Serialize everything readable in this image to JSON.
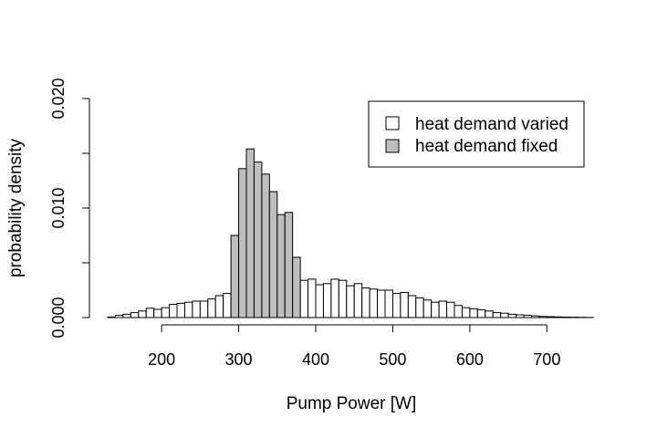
{
  "chart_data": {
    "type": "bar",
    "title": "",
    "xlabel": "Pump Power [W]",
    "ylabel": "probability density",
    "xlim": [
      130,
      760
    ],
    "ylim": [
      0,
      0.02
    ],
    "x_ticks": [
      200,
      300,
      400,
      500,
      600,
      700
    ],
    "x_tick_labels": [
      "200",
      "300",
      "400",
      "500",
      "600",
      "700"
    ],
    "y_ticks": [
      0,
      0.005,
      0.01,
      0.015,
      0.02
    ],
    "y_tick_labels": [
      "0.000",
      "",
      "0.010",
      "",
      "0.020"
    ],
    "legend_position": "top-right",
    "grid": false,
    "bin_width": 10,
    "series": [
      {
        "name": "heat demand varied",
        "color": "#ffffff",
        "bin_starts": [
          130,
          140,
          150,
          160,
          170,
          180,
          190,
          200,
          210,
          220,
          230,
          240,
          250,
          260,
          270,
          280,
          290,
          300,
          310,
          320,
          330,
          340,
          350,
          360,
          370,
          380,
          390,
          400,
          410,
          420,
          430,
          440,
          450,
          460,
          470,
          480,
          490,
          500,
          510,
          520,
          530,
          540,
          550,
          560,
          570,
          580,
          590,
          600,
          610,
          620,
          630,
          640,
          650,
          660,
          670,
          680,
          690,
          700,
          710,
          720,
          730,
          740,
          750
        ],
        "values": [
          5e-05,
          0.0002,
          0.0003,
          0.00045,
          0.0006,
          0.00085,
          0.00075,
          0.0009,
          0.0012,
          0.0013,
          0.0014,
          0.0015,
          0.0015,
          0.0017,
          0.002,
          0.0022,
          0.0021,
          0.0025,
          0.0027,
          0.003,
          0.0032,
          0.003,
          0.003,
          0.0033,
          0.0032,
          0.0034,
          0.0035,
          0.003,
          0.0031,
          0.0035,
          0.0034,
          0.0029,
          0.0031,
          0.0027,
          0.0026,
          0.0025,
          0.0025,
          0.0022,
          0.0023,
          0.002,
          0.0018,
          0.0016,
          0.0014,
          0.0015,
          0.0014,
          0.0011,
          0.0009,
          0.0008,
          0.0007,
          0.0006,
          0.00045,
          0.0004,
          0.0003,
          0.00025,
          0.0002,
          0.00015,
          0.0001,
          8e-05,
          6e-05,
          4e-05,
          3e-05,
          2e-05,
          1e-05
        ]
      },
      {
        "name": "heat demand fixed",
        "color": "#bebebe",
        "bin_starts": [
          290,
          300,
          310,
          320,
          330,
          340,
          350,
          360,
          370
        ],
        "values": [
          0.0075,
          0.0136,
          0.0154,
          0.0142,
          0.0131,
          0.0115,
          0.0094,
          0.0096,
          0.0055
        ]
      }
    ]
  }
}
